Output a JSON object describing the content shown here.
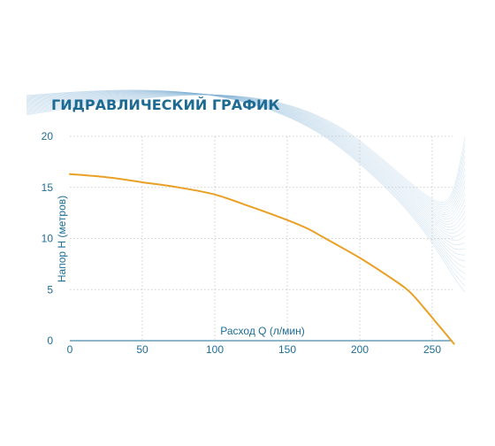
{
  "chart_data": {
    "type": "line",
    "title": "ГИДРАВЛИЧЕСКИЙ ГРАФИК",
    "xlabel": "Расход Q (л/мин)",
    "ylabel": "Напор H (метров)",
    "xlim": [
      0,
      270
    ],
    "ylim": [
      0,
      20
    ],
    "x_ticks": [
      "0",
      "50",
      "100",
      "150",
      "200",
      "250"
    ],
    "y_ticks": [
      "0",
      "5",
      "10",
      "15",
      "20"
    ],
    "grid": true,
    "series": [
      {
        "x": [
          0,
          25,
          50,
          75,
          100,
          125,
          150,
          165,
          175,
          200,
          225,
          235,
          245,
          255,
          265
        ],
        "y": [
          16.3,
          16.0,
          15.5,
          15.0,
          14.3,
          13.1,
          11.8,
          10.9,
          10.1,
          8.1,
          5.8,
          4.7,
          3.1,
          1.4,
          -0.3
        ]
      }
    ],
    "colors": {
      "line": "#e9a024",
      "axis_text": "#1e6d96",
      "grid": "#c3c3c3",
      "decoration": "#7fb0d4"
    }
  }
}
